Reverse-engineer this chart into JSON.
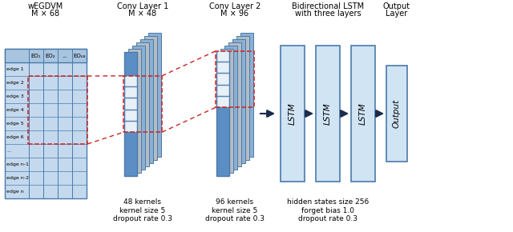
{
  "bg_color": "#ffffff",
  "table_color_header": "#a8c4df",
  "table_color_cell": "#c4d9ee",
  "table_color_border": "#4a7aaa",
  "conv_color_blue": "#5b8ec4",
  "conv_color_lightblue": "#8ab0d4",
  "conv_color_gray": "#b4bcc4",
  "lstm_color_fill": "#d0e4f4",
  "lstm_color_border": "#4a7aaa",
  "output_color_fill": "#c8ddf0",
  "output_color_border": "#4a7aaa",
  "dashed_color": "#cc2222",
  "arrow_color": "#1a2a4a",
  "text_color": "#000000",
  "bottom_labels": {
    "conv1": "48 kernels\nkernel size 5\ndropout rate 0.3",
    "conv2": "96 kernels\nkernel size 5\ndropout rate 0.3",
    "lstm": "hidden states size 256\nforget bias 1.0\ndropout rate 0.3"
  },
  "table_rows": [
    "edge 1",
    "edge 2",
    "edge 3",
    "edge 4",
    "edge 5",
    "edge 6",
    "...",
    "edge n-1",
    "edge n-2",
    "edge n"
  ],
  "table_cols": [
    "EO₁",
    "EO₂",
    "...",
    "EO₆₈"
  ]
}
